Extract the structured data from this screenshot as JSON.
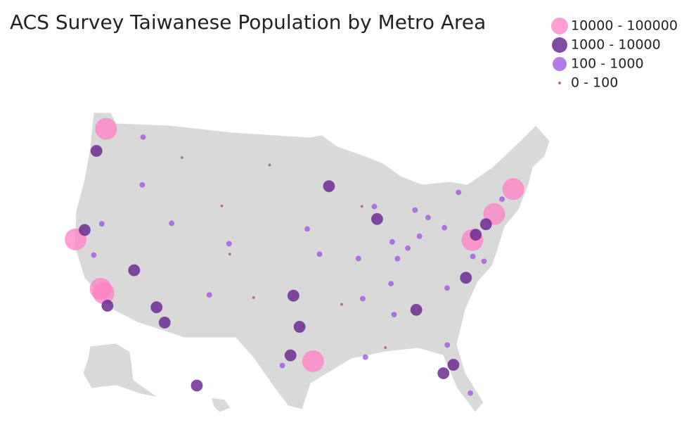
{
  "chart_data": {
    "type": "bubble-map",
    "title": "ACS Survey Taiwanese Population by Metro Area",
    "series": [
      {
        "name": "10000 - 100000",
        "color": "#ff7fc4",
        "lon": [
          -122.3,
          -122.2,
          -118.2,
          -117.8,
          -74.0,
          -71.1,
          -77.1,
          -95.4
        ],
        "lat": [
          47.6,
          37.6,
          34.0,
          33.7,
          40.7,
          42.4,
          38.9,
          29.8
        ]
      },
      {
        "name": "1000 - 10000",
        "color": "#6a2c91",
        "lon": [
          -122.7,
          -121.5,
          -117.1,
          -115.1,
          -112.0,
          -110.9,
          -96.8,
          -97.7,
          -87.7,
          -93.3,
          -75.2,
          -76.6,
          -84.4,
          -81.4,
          -82.5,
          -157.9,
          -97.5,
          -78.6
        ],
        "lat": [
          45.5,
          38.6,
          32.7,
          36.2,
          33.4,
          32.2,
          32.8,
          30.3,
          41.9,
          45.0,
          40.0,
          39.3,
          33.7,
          28.5,
          27.9,
          21.3,
          35.5,
          35.8
        ]
      },
      {
        "name": "100 - 1000",
        "color": "#a259e0",
        "lon": [
          -111.9,
          -105.0,
          -94.6,
          -90.2,
          -83.1,
          -83.0,
          -80.0,
          -81.7,
          -86.2,
          -86.8,
          -80.8,
          -80.2,
          -90.1,
          -98.5,
          -106.6,
          -116.2,
          -117.4,
          -87.9,
          -77.6,
          -72.7,
          -77.4,
          -76.3,
          -90.0,
          -86.8,
          -81.7,
          -84.5,
          -85.8,
          -119.8,
          -119.8,
          -96.0
        ],
        "lat": [
          40.8,
          39.7,
          39.1,
          38.6,
          42.3,
          40.0,
          40.4,
          41.5,
          39.8,
          36.2,
          35.2,
          25.8,
          30.0,
          29.4,
          35.1,
          43.6,
          47.7,
          43.0,
          43.2,
          41.8,
          37.5,
          36.9,
          35.1,
          33.5,
          30.3,
          39.1,
          38.3,
          36.7,
          39.5,
          41.3
        ]
      },
      {
        "name": "0 - 100",
        "color": "#b0607f",
        "lon": [
          -100.8,
          -106.3,
          -101.8,
          -89.4,
          -92.3,
          -88.0,
          -104.8,
          -112.0
        ],
        "lat": [
          46.8,
          42.9,
          35.2,
          43.1,
          34.7,
          30.7,
          38.8,
          46.6
        ]
      }
    ]
  }
}
